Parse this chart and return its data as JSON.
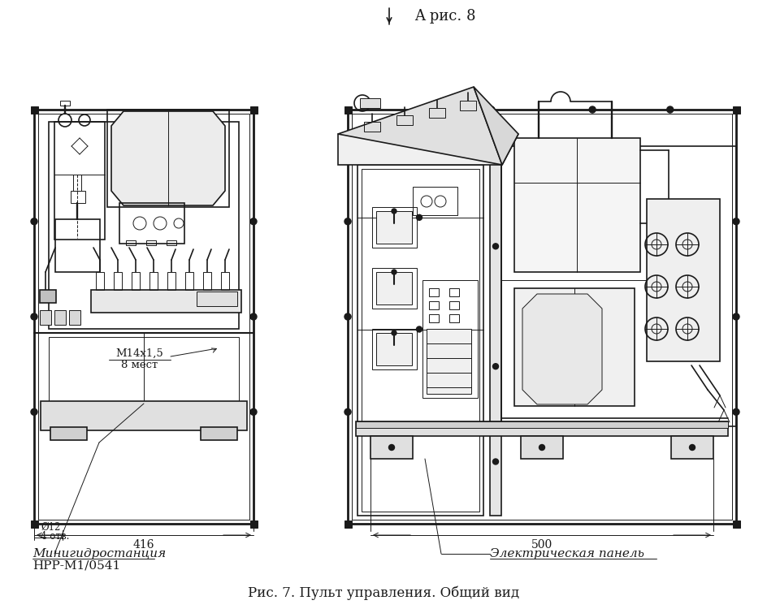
{
  "title_top": "A рис. 8",
  "title_bottom": "Рис. 7. Пульт управления. Общий вид",
  "label_left_1": "Минигидростанция",
  "label_left_2": "НРР-М1/0541",
  "label_right": "Электрическая панель",
  "dim_left_width": "416",
  "dim_left_hole": "Ø12",
  "dim_left_hole2": "4 отв.",
  "dim_right_width": "500",
  "annotation_m14": "М14х1,5",
  "annotation_8": "8 мест",
  "bg_color": "#ffffff",
  "line_color": "#1a1a1a",
  "fig_width": 9.45,
  "fig_height": 7.5
}
